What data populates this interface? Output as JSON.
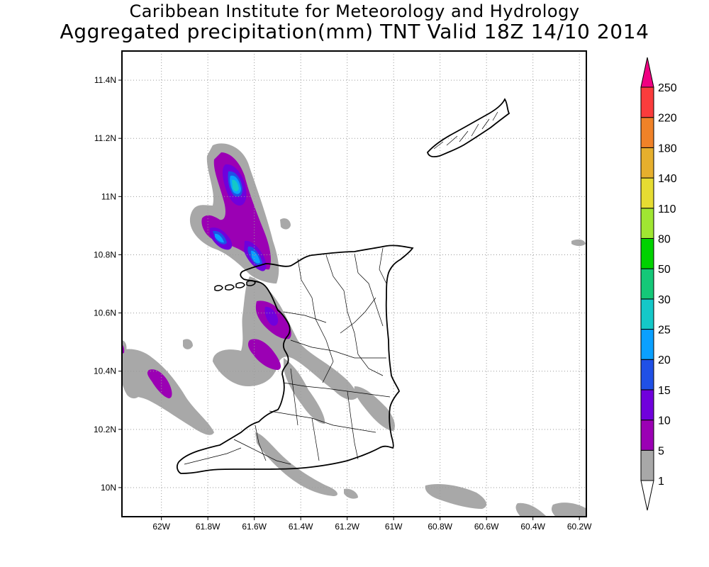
{
  "title": {
    "line1": "Caribbean Institute for Meteorology and Hydrology",
    "line2": "Aggregated precipitation(mm) TNT Valid 18Z 14/10 2014"
  },
  "map": {
    "lon_range": [
      -62.17,
      -60.17
    ],
    "lat_range": [
      9.9,
      11.5
    ],
    "grid": true,
    "x_ticks": [
      {
        "value": -62.0,
        "label": "62W"
      },
      {
        "value": -61.8,
        "label": "61.8W"
      },
      {
        "value": -61.6,
        "label": "61.6W"
      },
      {
        "value": -61.4,
        "label": "61.4W"
      },
      {
        "value": -61.2,
        "label": "61.2W"
      },
      {
        "value": -61.0,
        "label": "61W"
      },
      {
        "value": -60.8,
        "label": "60.8W"
      },
      {
        "value": -60.6,
        "label": "60.6W"
      },
      {
        "value": -60.4,
        "label": "60.4W"
      },
      {
        "value": -60.2,
        "label": "60.2W"
      }
    ],
    "y_ticks": [
      {
        "value": 10.0,
        "label": "10N"
      },
      {
        "value": 10.2,
        "label": "10.2N"
      },
      {
        "value": 10.4,
        "label": "10.4N"
      },
      {
        "value": 10.6,
        "label": "10.6N"
      },
      {
        "value": 10.8,
        "label": "10.8N"
      },
      {
        "value": 11.0,
        "label": "11N"
      },
      {
        "value": 11.2,
        "label": "11.2N"
      },
      {
        "value": 11.4,
        "label": "11.4N"
      }
    ],
    "land_outline_color": "#000000",
    "areas": [
      "Trinidad",
      "Tobago"
    ]
  },
  "colorbar": {
    "levels": [
      {
        "label": "1",
        "color": "#ffffff"
      },
      {
        "label": "5",
        "color": "#a8a8a8"
      },
      {
        "label": "10",
        "color": "#9b00b4"
      },
      {
        "label": "15",
        "color": "#7000dc"
      },
      {
        "label": "20",
        "color": "#2050e6"
      },
      {
        "label": "25",
        "color": "#0aa0ff"
      },
      {
        "label": "30",
        "color": "#14c8c8"
      },
      {
        "label": "50",
        "color": "#14c878"
      },
      {
        "label": "80",
        "color": "#00d200"
      },
      {
        "label": "110",
        "color": "#a0e632"
      },
      {
        "label": "140",
        "color": "#e6dc32"
      },
      {
        "label": "180",
        "color": "#e6af2d"
      },
      {
        "label": "220",
        "color": "#f08228"
      },
      {
        "label": "250",
        "color": "#fa3c3c"
      }
    ],
    "top_arrow_color": "#f00082",
    "bottom_arrow_color": "#ffffff"
  }
}
